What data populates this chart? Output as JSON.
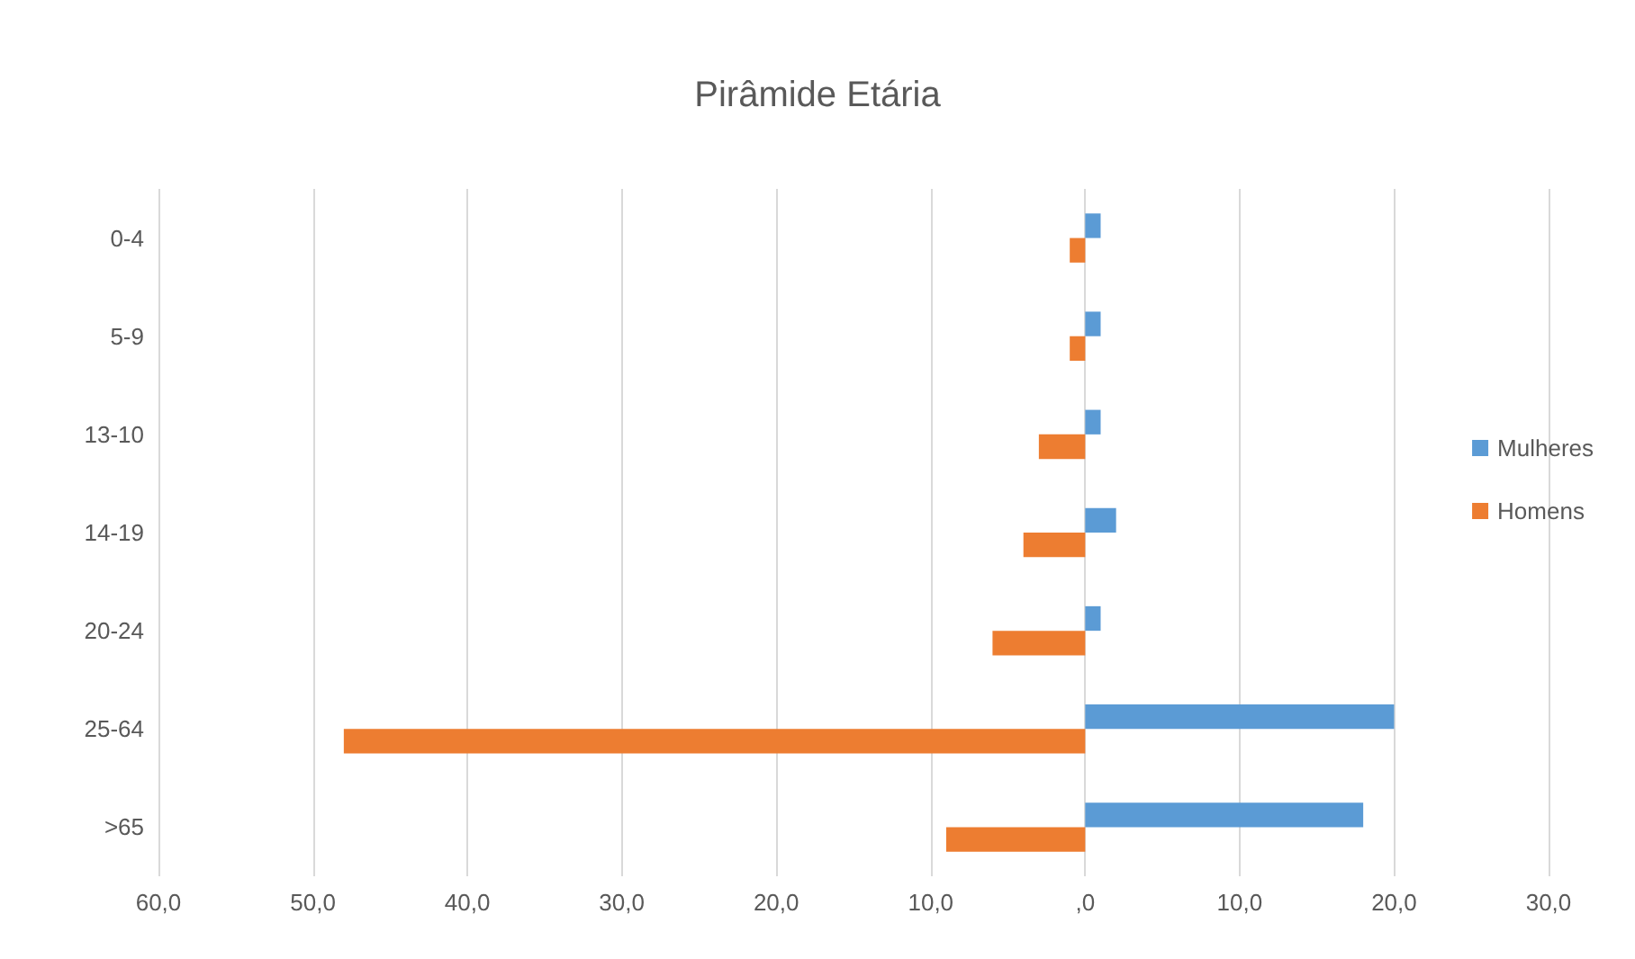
{
  "chart_data": {
    "type": "bar",
    "orientation": "horizontal",
    "title": "Pirâmide Etária",
    "categories": [
      "0-4",
      "5-9",
      "13-10",
      "14-19",
      "20-24",
      "25-64",
      ">65"
    ],
    "series": [
      {
        "name": "Mulheres",
        "color": "#5b9bd5",
        "values": [
          1,
          1,
          1,
          2,
          1,
          20,
          18
        ]
      },
      {
        "name": "Homens",
        "color": "#ed7d31",
        "values": [
          -1,
          -1,
          -3,
          -4,
          -6,
          -48,
          -9
        ]
      }
    ],
    "xlim": [
      -60,
      30
    ],
    "xticks": [
      {
        "value": -60,
        "label": "60,0"
      },
      {
        "value": -50,
        "label": "50,0"
      },
      {
        "value": -40,
        "label": "40,0"
      },
      {
        "value": -30,
        "label": "30,0"
      },
      {
        "value": -20,
        "label": "20,0"
      },
      {
        "value": -10,
        "label": "10,0"
      },
      {
        "value": 0,
        "label": ",0"
      },
      {
        "value": 10,
        "label": "10,0"
      },
      {
        "value": 20,
        "label": "20,0"
      },
      {
        "value": 30,
        "label": "30,0"
      }
    ],
    "grid": "x",
    "legend": "right"
  }
}
